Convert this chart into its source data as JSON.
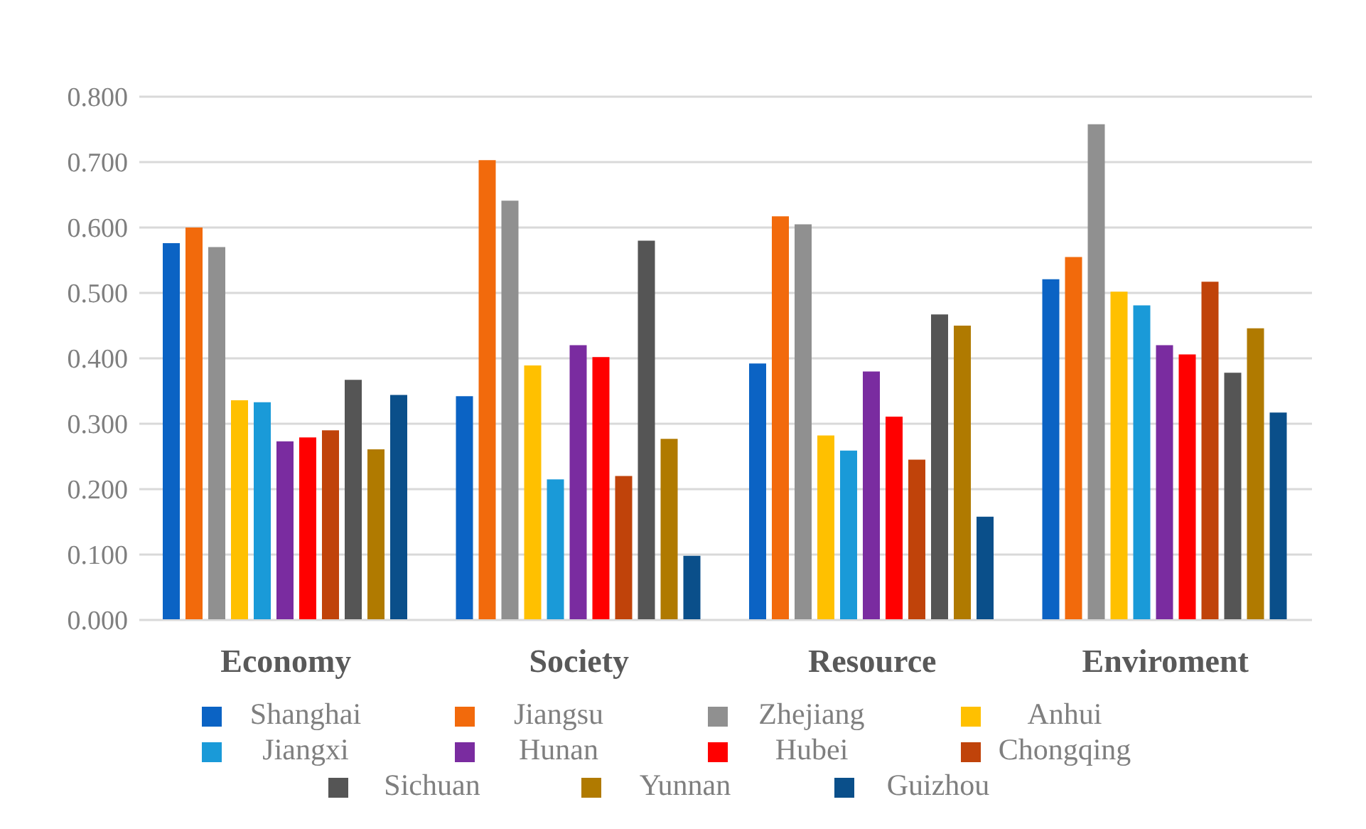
{
  "chart_data": {
    "type": "bar",
    "categories": [
      "Economy",
      "Society",
      "Resource",
      "Enviroment"
    ],
    "series": [
      {
        "name": "Shanghai",
        "color": "#0b63c4",
        "values": [
          0.576,
          0.342,
          0.392,
          0.521
        ]
      },
      {
        "name": "Jiangsu",
        "color": "#f26a0c",
        "values": [
          0.6,
          0.703,
          0.617,
          0.555
        ]
      },
      {
        "name": "Zhejiang",
        "color": "#909090",
        "values": [
          0.57,
          0.641,
          0.605,
          0.758
        ]
      },
      {
        "name": "Anhui",
        "color": "#ffc000",
        "values": [
          0.336,
          0.389,
          0.282,
          0.502
        ]
      },
      {
        "name": "Jiangxi",
        "color": "#1a9ad8",
        "values": [
          0.333,
          0.215,
          0.259,
          0.481
        ]
      },
      {
        "name": "Hunan",
        "color": "#7a2ca0",
        "values": [
          0.273,
          0.42,
          0.38,
          0.42
        ]
      },
      {
        "name": "Hubei",
        "color": "#ff0000",
        "values": [
          0.279,
          0.402,
          0.311,
          0.406
        ]
      },
      {
        "name": "Chongqing",
        "color": "#c0430a",
        "values": [
          0.29,
          0.22,
          0.245,
          0.517
        ]
      },
      {
        "name": "Sichuan",
        "color": "#555555",
        "values": [
          0.367,
          0.58,
          0.467,
          0.378
        ]
      },
      {
        "name": "Yunnan",
        "color": "#b07a00",
        "values": [
          0.261,
          0.277,
          0.45,
          0.446
        ]
      },
      {
        "name": "Guizhou",
        "color": "#0a4f8a",
        "values": [
          0.344,
          0.098,
          0.158,
          0.317
        ]
      }
    ],
    "ylim": [
      0,
      0.8
    ],
    "yticks": [
      {
        "value": 0,
        "label": "0.000"
      },
      {
        "value": 0.1,
        "label": "0.100"
      },
      {
        "value": 0.2,
        "label": "0.200"
      },
      {
        "value": 0.3,
        "label": "0.300"
      },
      {
        "value": 0.4,
        "label": "0.400"
      },
      {
        "value": 0.5,
        "label": "0.500"
      },
      {
        "value": 0.6,
        "label": "0.600"
      },
      {
        "value": 0.7,
        "label": "0.700"
      },
      {
        "value": 0.8,
        "label": "0.800"
      }
    ],
    "grid": "y",
    "legend": "bottom"
  }
}
